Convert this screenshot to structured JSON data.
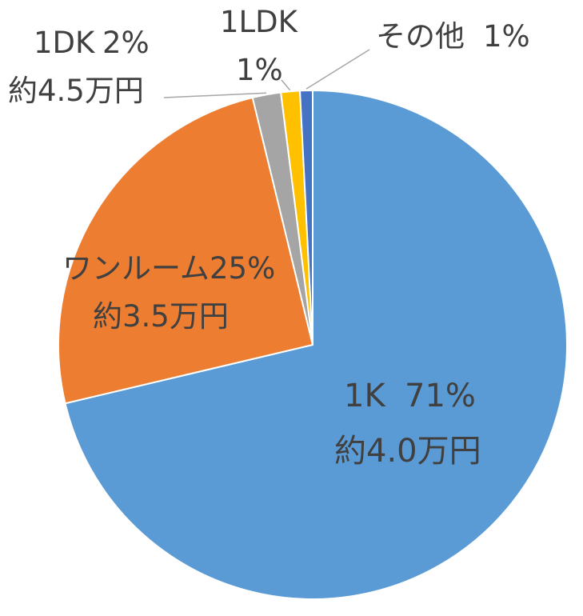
{
  "chart_data": {
    "type": "pie",
    "slices": [
      {
        "category": "1K",
        "percent_label": "71%",
        "price_label": "約4.0万円",
        "value": 71.3,
        "color": "#5b9bd5"
      },
      {
        "category": "ワンルーム",
        "percent_label": "25%",
        "price_label": "約3.5万円",
        "value": 24.9,
        "color": "#ed7d31"
      },
      {
        "category": "1DK",
        "percent_label": "2%",
        "price_label": "約4.5万円",
        "value": 1.8,
        "color": "#a5a5a5"
      },
      {
        "category": "1LDK",
        "percent_label": "1%",
        "price_label": "",
        "value": 1.2,
        "color": "#ffc000"
      },
      {
        "category": "その他",
        "percent_label": "1%",
        "price_label": "",
        "value": 0.8,
        "color": "#4472c4"
      }
    ],
    "start_angle": "12 o'clock",
    "direction": "clockwise",
    "legend": "none"
  }
}
